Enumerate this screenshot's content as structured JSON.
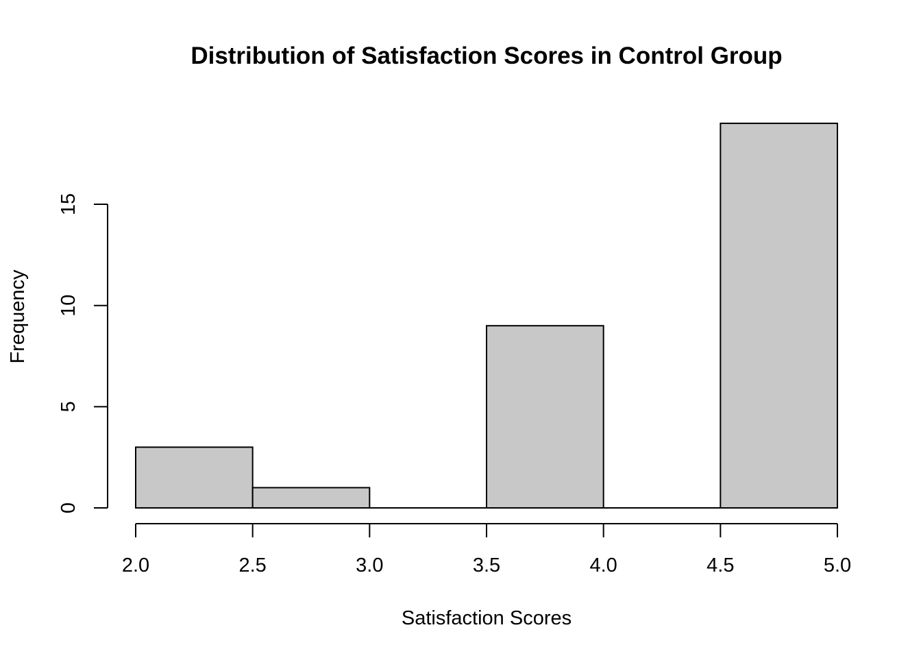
{
  "chart_data": {
    "type": "bar",
    "title": "Distribution of Satisfaction Scores in Control Group",
    "xlabel": "Satisfaction Scores",
    "ylabel": "Frequency",
    "bins": [
      {
        "start": 2.0,
        "end": 2.5,
        "count": 3
      },
      {
        "start": 2.5,
        "end": 3.0,
        "count": 1
      },
      {
        "start": 3.0,
        "end": 3.5,
        "count": 0
      },
      {
        "start": 3.5,
        "end": 4.0,
        "count": 9
      },
      {
        "start": 4.0,
        "end": 4.5,
        "count": 0
      },
      {
        "start": 4.5,
        "end": 5.0,
        "count": 19
      }
    ],
    "xticks": [
      "2.0",
      "2.5",
      "3.0",
      "3.5",
      "4.0",
      "4.5",
      "5.0"
    ],
    "yticks": [
      "0",
      "5",
      "10",
      "15"
    ],
    "xlim": [
      2.0,
      5.0
    ],
    "ylim": [
      0,
      19
    ],
    "grid": false,
    "bar_color": "#c8c8c8",
    "border_color": "#000000"
  }
}
